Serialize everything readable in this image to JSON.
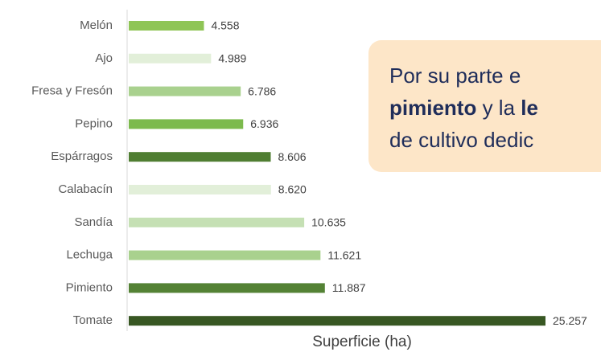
{
  "chart_data": {
    "type": "bar",
    "orientation": "horizontal",
    "categories": [
      "Melón",
      "Ajo",
      "Fresa y Fresón",
      "Pepino",
      "Espárragos",
      "Calabacín",
      "Sandía",
      "Lechuga",
      "Pimiento",
      "Tomate"
    ],
    "values": [
      4558,
      4989,
      6786,
      6936,
      8606,
      8620,
      10635,
      11621,
      11887,
      25257
    ],
    "value_labels": [
      "4.558",
      "4.989",
      "6.786",
      "6.936",
      "8.606",
      "8.620",
      "10.635",
      "11.621",
      "11.887",
      "25.257"
    ],
    "colors": [
      "#8fc556",
      "#e2efd9",
      "#a9d18e",
      "#7cba4d",
      "#507e32",
      "#e2efd9",
      "#c5e0b4",
      "#a9d18e",
      "#548235",
      "#385723"
    ],
    "x_label": "Superficie (ha)"
  },
  "text_box": {
    "lines": [
      [
        {
          "text": "Por su parte e",
          "bold": false
        }
      ],
      [
        {
          "text": "pimiento",
          "bold": true
        },
        {
          "text": " y la ",
          "bold": false
        },
        {
          "text": "le",
          "bold": true
        }
      ],
      [
        {
          "text": "de cultivo dedic",
          "bold": false
        }
      ]
    ]
  }
}
